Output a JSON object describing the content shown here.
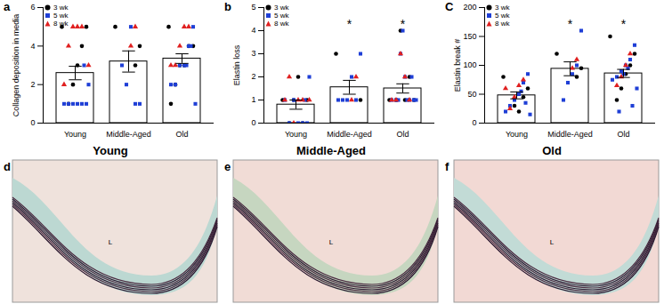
{
  "chart_data": [
    {
      "type": "bar",
      "title": "a",
      "y_label": "Collagen deposition in media",
      "categories": [
        "Young",
        "Middle-Aged",
        "Old"
      ],
      "values": [
        2.6,
        3.2,
        3.35
      ],
      "errors": [
        0.35,
        0.55,
        0.25
      ],
      "color": "#ffffff",
      "annotations": [
        null,
        null,
        null
      ],
      "ylim": [
        0,
        6
      ],
      "yticks": [
        0,
        2,
        4,
        6
      ],
      "legend": "top-left",
      "series": [
        {
          "name": "3 wk",
          "color": "#000000",
          "marker": "circle",
          "points": [
            [
              5,
              5,
              4,
              3,
              2,
              1
            ],
            [
              5,
              4,
              3
            ],
            [
              5,
              4,
              4,
              3,
              3,
              2,
              1
            ]
          ]
        },
        {
          "name": "5 wk",
          "color": "#1f3fd6",
          "marker": "square",
          "points": [
            [
              1,
              1,
              1,
              1,
              1,
              1,
              2,
              3
            ],
            [
              1,
              1,
              5,
              2,
              3
            ],
            [
              5,
              4,
              3,
              3,
              2,
              2,
              1,
              4,
              3
            ]
          ]
        },
        {
          "name": "8 wk",
          "color": "#e02020",
          "marker": "triangle",
          "points": [
            [
              5,
              5,
              5,
              4,
              2,
              3
            ],
            [
              5,
              4
            ],
            [
              5,
              5,
              4,
              3,
              3
            ]
          ]
        }
      ]
    },
    {
      "type": "bar",
      "title": "b",
      "y_label": "Elastin loss",
      "categories": [
        "Young",
        "Middle-Aged",
        "Old"
      ],
      "values": [
        0.8,
        1.55,
        1.5
      ],
      "errors": [
        0.2,
        0.3,
        0.2
      ],
      "color": "#ffffff",
      "annotations": [
        null,
        "*",
        "*"
      ],
      "ylim": [
        0,
        5
      ],
      "yticks": [
        0,
        1,
        2,
        3,
        4,
        5
      ],
      "legend": "top-left",
      "series": [
        {
          "name": "3 wk",
          "color": "#000000",
          "marker": "circle",
          "points": [
            [
              1,
              1,
              0,
              2,
              1,
              0
            ],
            [
              3,
              1
            ],
            [
              1,
              1,
              2,
              1,
              4,
              1
            ]
          ]
        },
        {
          "name": "5 wk",
          "color": "#1f3fd6",
          "marker": "square",
          "points": [
            [
              0,
              0,
              0,
              1,
              0,
              1,
              2,
              1
            ],
            [
              3,
              1,
              2,
              1,
              1,
              1
            ],
            [
              1,
              1,
              2,
              3,
              1,
              1,
              1,
              2,
              1,
              4,
              1
            ]
          ]
        },
        {
          "name": "8 wk",
          "color": "#e02020",
          "marker": "triangle",
          "points": [
            [
              1,
              1,
              0,
              2,
              1,
              1
            ],
            [
              2,
              1
            ],
            [
              1,
              2,
              3,
              1,
              1
            ]
          ]
        }
      ]
    },
    {
      "type": "bar",
      "title": "C",
      "y_label": "Elastin break #",
      "categories": [
        "Young",
        "Middle-Aged",
        "Old"
      ],
      "values": [
        48,
        94,
        86
      ],
      "errors": [
        6,
        12,
        7
      ],
      "color": "#ffffff",
      "annotations": [
        null,
        "*",
        "*"
      ],
      "ylim": [
        0,
        200
      ],
      "yticks": [
        0,
        50,
        100,
        150,
        200
      ],
      "legend": "top-left",
      "series": [
        {
          "name": "3 wk",
          "color": "#000000",
          "marker": "circle",
          "points": [
            [
              80,
              60,
              45,
              20,
              30
            ],
            [
              120,
              95,
              80
            ],
            [
              150,
              120,
              100,
              85,
              60,
              40
            ]
          ]
        },
        {
          "name": "5 wk",
          "color": "#1f3fd6",
          "marker": "square",
          "points": [
            [
              85,
              70,
              50,
              40,
              30,
              20,
              15,
              35,
              55
            ],
            [
              160,
              100,
              85,
              70,
              40
            ],
            [
              135,
              110,
              100,
              90,
              80,
              75,
              60,
              30,
              95,
              85,
              20
            ]
          ]
        },
        {
          "name": "8 wk",
          "color": "#e02020",
          "marker": "triangle",
          "points": [
            [
              75,
              65,
              45,
              25,
              60
            ],
            [
              110,
              95
            ],
            [
              120,
              100,
              80,
              65
            ]
          ]
        }
      ]
    }
  ],
  "panels": [
    {
      "label": "d",
      "title": "Young",
      "lumen_label": "L"
    },
    {
      "label": "e",
      "title": "Middle-Aged",
      "lumen_label": "L"
    },
    {
      "label": "f",
      "title": "Old",
      "lumen_label": "L"
    }
  ]
}
